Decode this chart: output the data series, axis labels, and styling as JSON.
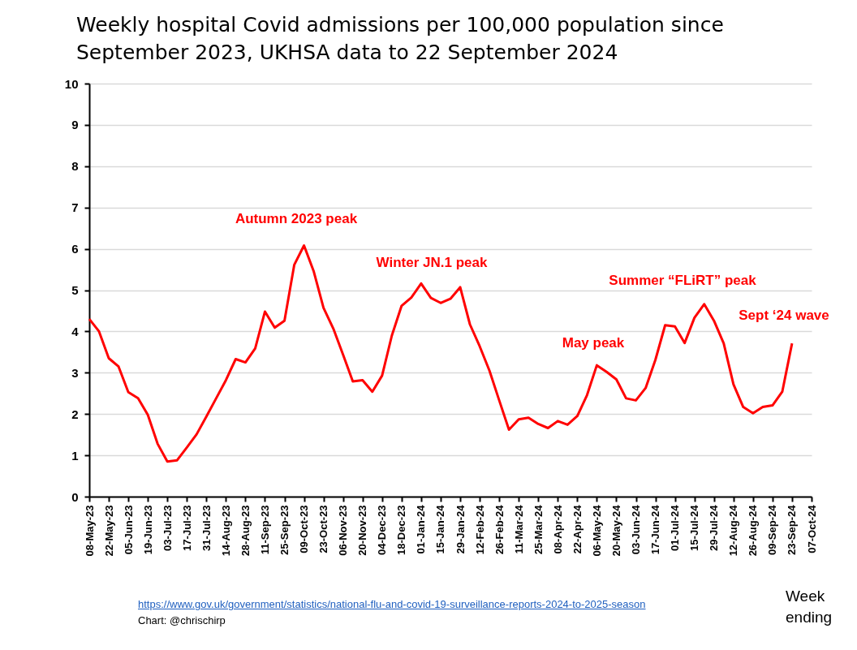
{
  "chart_data": {
    "type": "line",
    "title": "Weekly hospital Covid admissions per 100,000 population since September 2023, UKHSA data to 22 September 2024",
    "xlabel": "Week ending",
    "categories": [
      "08-May-23",
      null,
      "22-May-23",
      null,
      "05-Jun-23",
      null,
      "19-Jun-23",
      null,
      "03-Jul-23",
      null,
      "17-Jul-23",
      null,
      "31-Jul-23",
      null,
      "14-Aug-23",
      null,
      "28-Aug-23",
      null,
      "11-Sep-23",
      null,
      "25-Sep-23",
      null,
      "09-Oct-23",
      null,
      "23-Oct-23",
      null,
      "06-Nov-23",
      null,
      "20-Nov-23",
      null,
      "04-Dec-23",
      null,
      "18-Dec-23",
      null,
      "01-Jan-24",
      null,
      "15-Jan-24",
      null,
      "29-Jan-24",
      null,
      "12-Feb-24",
      null,
      "26-Feb-24",
      null,
      "11-Mar-24",
      null,
      "25-Mar-24",
      null,
      "08-Apr-24",
      null,
      "22-Apr-24",
      null,
      "06-May-24",
      null,
      "20-May-24",
      null,
      "03-Jun-24",
      null,
      "17-Jun-24",
      null,
      "01-Jul-24",
      null,
      "15-Jul-24",
      null,
      "29-Jul-24",
      null,
      "12-Aug-24",
      null,
      "26-Aug-24",
      null,
      "09-Sep-24",
      null,
      "23-Sep-24",
      null,
      "07-Oct-24"
    ],
    "series": [
      {
        "color": "#ff0000",
        "values": [
          4.3,
          4.0,
          3.35,
          3.15,
          2.53,
          2.38,
          1.98,
          1.28,
          0.85,
          0.88,
          1.19,
          1.51,
          1.94,
          2.38,
          2.82,
          3.33,
          3.25,
          3.59,
          4.48,
          4.09,
          4.26,
          5.61,
          6.08,
          5.45,
          4.57,
          4.07,
          3.44,
          2.79,
          2.82,
          2.54,
          2.93,
          3.9,
          4.62,
          4.82,
          5.16,
          4.81,
          4.69,
          4.79,
          5.07,
          4.17,
          3.64,
          3.05,
          2.33,
          1.62,
          1.87,
          1.91,
          1.76,
          1.66,
          1.83,
          1.74,
          1.95,
          2.46,
          3.18,
          3.02,
          2.84,
          2.38,
          2.33,
          2.63,
          3.31,
          4.15,
          4.12,
          3.72,
          4.33,
          4.66,
          4.26,
          3.71,
          2.72,
          2.17,
          2.02,
          2.17,
          2.21,
          2.54,
          3.71,
          null,
          null
        ]
      }
    ],
    "ylim": [
      0,
      10
    ],
    "yticks": [
      0,
      1,
      2,
      3,
      4,
      5,
      6,
      7,
      8,
      9,
      10
    ],
    "grid": "y",
    "annotations": [
      "Autumn 2023 peak",
      "Winter JN.1 peak",
      "May peak",
      "Summer “FLiRT” peak",
      "Sept ‘24 wave",
      "https://www.gov.uk/government/statistics/national-flu-and-covid-19-surveillance-reports-2024-to-2025-season",
      "Chart: @chrischirp"
    ]
  }
}
